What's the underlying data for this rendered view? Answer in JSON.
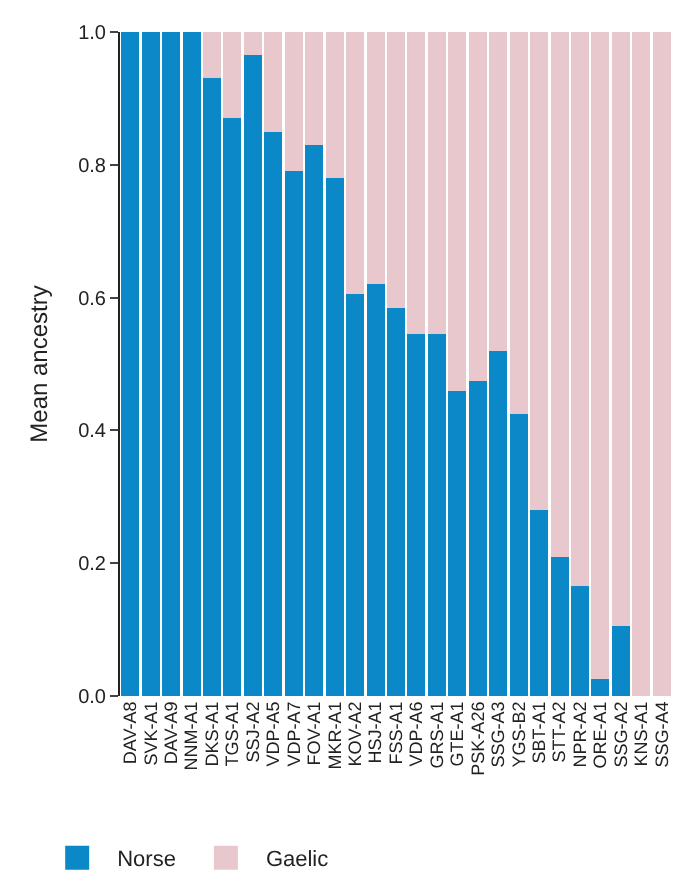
{
  "chart_data": {
    "type": "bar",
    "stacked": true,
    "ylabel": "Mean ancestry",
    "categories": [
      "DAV-A8",
      "SVK-A1",
      "DAV-A9",
      "NNM-A1",
      "DKS-A1",
      "TGS-A1",
      "SSJ-A2",
      "VDP-A5",
      "VDP-A7",
      "FOV-A1",
      "MKR-A1",
      "KOV-A2",
      "HSJ-A1",
      "FSS-A1",
      "VDP-A6",
      "GRS-A1",
      "GTE-A1",
      "PSK-A26",
      "SSG-A3",
      "YGS-B2",
      "SBT-A1",
      "STT-A2",
      "NPR-A2",
      "ORE-A1",
      "SSG-A2",
      "KNS-A1",
      "SSG-A4"
    ],
    "series": [
      {
        "name": "Norse",
        "color": "#0a88c8",
        "values": [
          1,
          1,
          1,
          1,
          0.93,
          0.87,
          0.965,
          0.85,
          0.79,
          0.83,
          0.78,
          0.605,
          0.62,
          0.585,
          0.545,
          0.545,
          0.46,
          0.475,
          0.52,
          0.425,
          0.28,
          0.21,
          0.165,
          0.025,
          0.105,
          0,
          0
        ]
      },
      {
        "name": "Gaelic",
        "color": "#e8c8cc",
        "values": [
          0,
          0,
          0,
          0,
          0.07,
          0.13,
          0.035,
          0.15,
          0.21,
          0.17,
          0.22,
          0.395,
          0.38,
          0.415,
          0.455,
          0.455,
          0.54,
          0.525,
          0.48,
          0.575,
          0.72,
          0.79,
          0.835,
          0.975,
          0.895,
          1,
          1
        ]
      }
    ],
    "ylim": [
      0,
      1
    ],
    "yticks": [
      {
        "value": 0,
        "label": "0.0"
      },
      {
        "value": 0.2,
        "label": "0.2"
      },
      {
        "value": 0.4,
        "label": "0.4"
      },
      {
        "value": 0.6,
        "label": "0.6"
      },
      {
        "value": 0.8,
        "label": "0.8"
      },
      {
        "value": 1,
        "label": "1.0"
      }
    ],
    "grid": false,
    "legend": "bottom left"
  }
}
